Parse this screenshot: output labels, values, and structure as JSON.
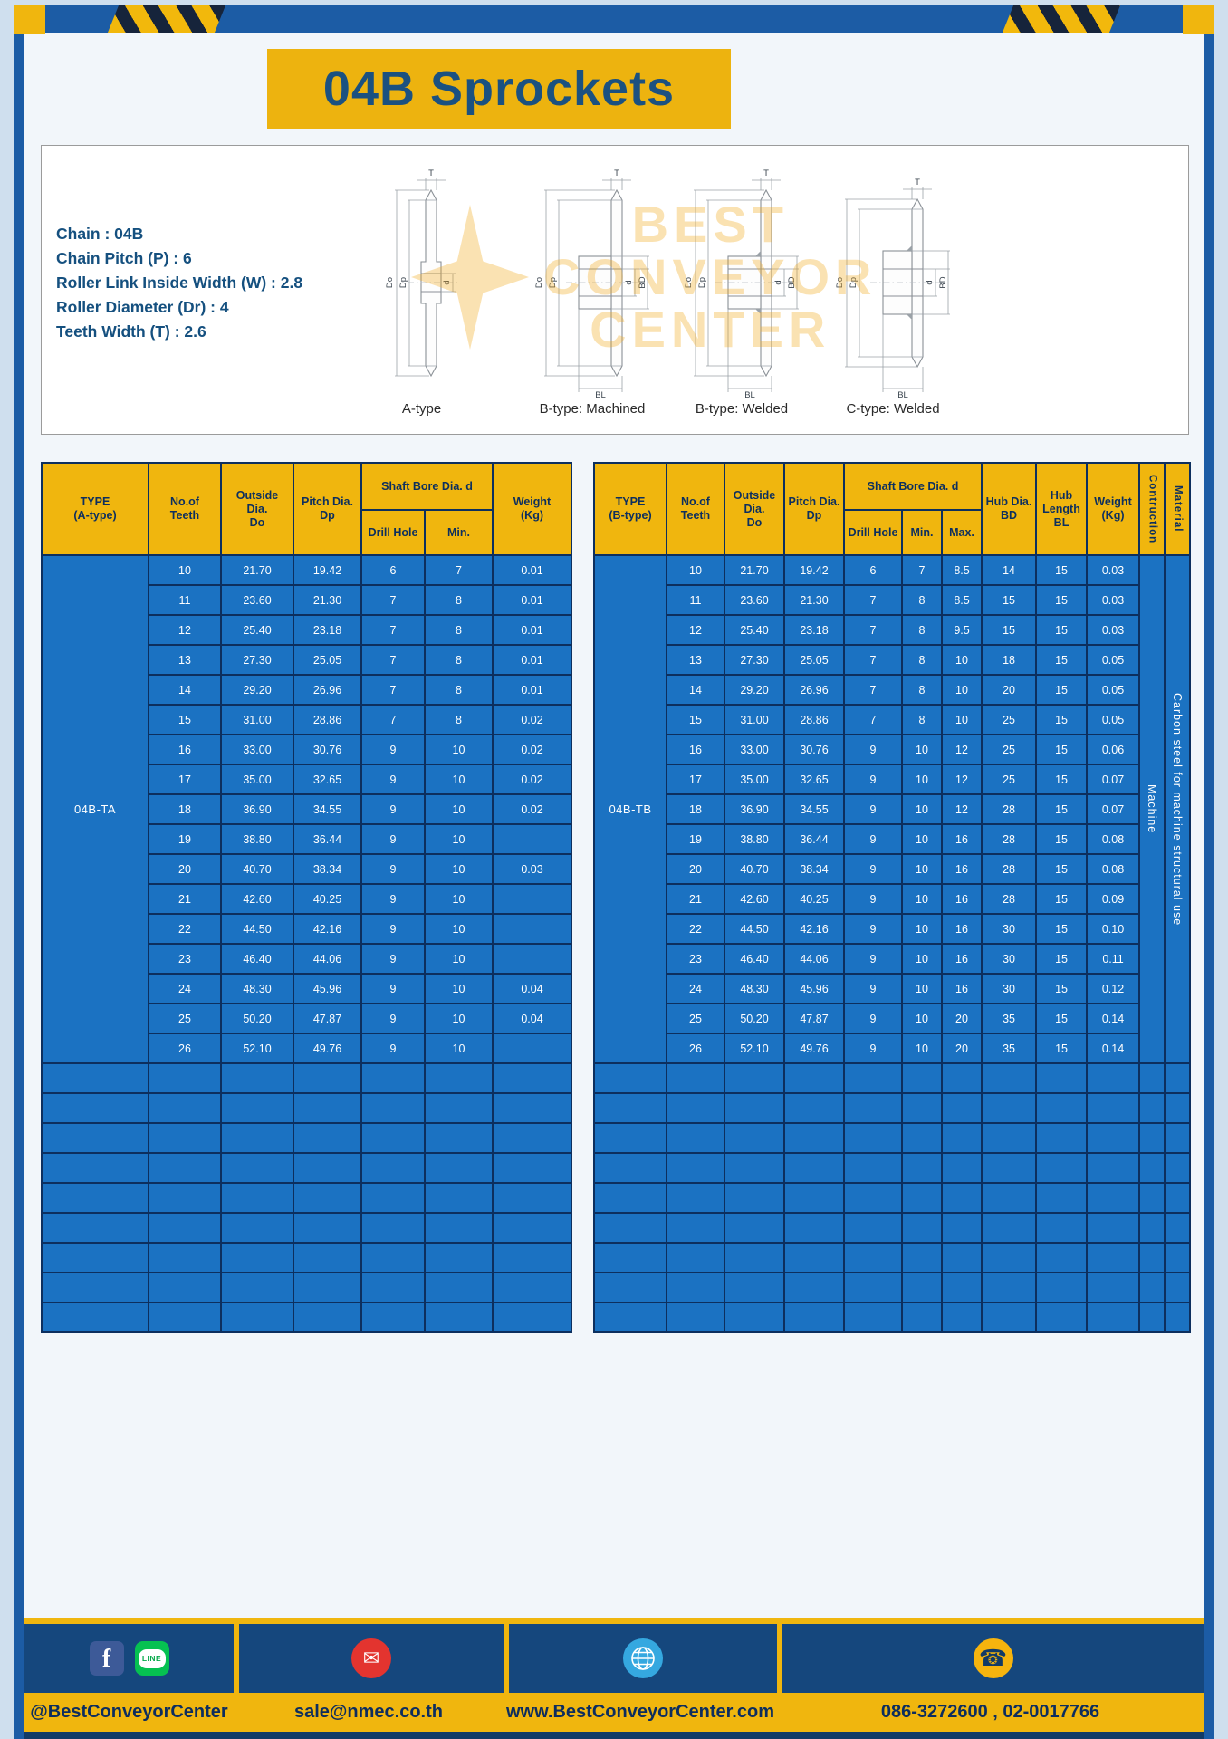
{
  "title": "04B Sprockets",
  "specs": [
    "Chain : 04B",
    "Chain Pitch (P) : 6",
    "Roller Link Inside Width (W) : 2.8",
    "Roller Diameter (Dr) : 4",
    "Teeth Width (T) : 2.6"
  ],
  "watermark": {
    "line1": "BEST",
    "line2": "CONVEYOR",
    "line3": "CENTER"
  },
  "drawings": {
    "captions": [
      "A-type",
      "B-type: Machined",
      "B-type: Welded",
      "C-type: Welded"
    ],
    "dims": {
      "T": "T",
      "Do": "Do",
      "Dp": "Dp",
      "d": "d",
      "BD": "BD",
      "BL": "BL"
    }
  },
  "tableA": {
    "h_type": "TYPE\n(A-type)",
    "h_teeth": "No.of\nTeeth",
    "h_outside": "Outside\nDia.\nDo",
    "h_pitch": "Pitch Dia.\nDp",
    "h_shaft": "Shaft Bore Dia. d",
    "h_drill": "Drill Hole",
    "h_min": "Min.",
    "h_weight": "Weight\n(Kg)",
    "type_label": "04B-TA",
    "total_cols": 7,
    "empty_rows": 9,
    "rows": [
      [
        "10",
        "21.70",
        "19.42",
        "6",
        "7",
        "0.01"
      ],
      [
        "11",
        "23.60",
        "21.30",
        "7",
        "8",
        "0.01"
      ],
      [
        "12",
        "25.40",
        "23.18",
        "7",
        "8",
        "0.01"
      ],
      [
        "13",
        "27.30",
        "25.05",
        "7",
        "8",
        "0.01"
      ],
      [
        "14",
        "29.20",
        "26.96",
        "7",
        "8",
        "0.01"
      ],
      [
        "15",
        "31.00",
        "28.86",
        "7",
        "8",
        "0.02"
      ],
      [
        "16",
        "33.00",
        "30.76",
        "9",
        "10",
        "0.02"
      ],
      [
        "17",
        "35.00",
        "32.65",
        "9",
        "10",
        "0.02"
      ],
      [
        "18",
        "36.90",
        "34.55",
        "9",
        "10",
        "0.02"
      ],
      [
        "19",
        "38.80",
        "36.44",
        "9",
        "10",
        ""
      ],
      [
        "20",
        "40.70",
        "38.34",
        "9",
        "10",
        "0.03"
      ],
      [
        "21",
        "42.60",
        "40.25",
        "9",
        "10",
        ""
      ],
      [
        "22",
        "44.50",
        "42.16",
        "9",
        "10",
        ""
      ],
      [
        "23",
        "46.40",
        "44.06",
        "9",
        "10",
        ""
      ],
      [
        "24",
        "48.30",
        "45.96",
        "9",
        "10",
        "0.04"
      ],
      [
        "25",
        "50.20",
        "47.87",
        "9",
        "10",
        "0.04"
      ],
      [
        "26",
        "52.10",
        "49.76",
        "9",
        "10",
        ""
      ]
    ]
  },
  "tableB": {
    "h_type": "TYPE\n(B-type)",
    "h_teeth": "No.of\nTeeth",
    "h_outside": "Outside\nDia.\nDo",
    "h_pitch": "Pitch Dia.\nDp",
    "h_shaft": "Shaft Bore Dia. d",
    "h_drill": "Drill Hole",
    "h_min": "Min.",
    "h_max": "Max.",
    "h_hubdia": "Hub Dia.\nBD",
    "h_hublen": "Hub\nLength\nBL",
    "h_weight": "Weight\n(Kg)",
    "h_construction": "Contruction",
    "h_material": "Material",
    "type_label": "04B-TB",
    "construction": "Machine",
    "material": "Carbon steel for machine structural use",
    "total_cols": 12,
    "empty_rows": 9,
    "rows": [
      [
        "10",
        "21.70",
        "19.42",
        "6",
        "7",
        "8.5",
        "14",
        "15",
        "0.03"
      ],
      [
        "11",
        "23.60",
        "21.30",
        "7",
        "8",
        "8.5",
        "15",
        "15",
        "0.03"
      ],
      [
        "12",
        "25.40",
        "23.18",
        "7",
        "8",
        "9.5",
        "15",
        "15",
        "0.03"
      ],
      [
        "13",
        "27.30",
        "25.05",
        "7",
        "8",
        "10",
        "18",
        "15",
        "0.05"
      ],
      [
        "14",
        "29.20",
        "26.96",
        "7",
        "8",
        "10",
        "20",
        "15",
        "0.05"
      ],
      [
        "15",
        "31.00",
        "28.86",
        "7",
        "8",
        "10",
        "25",
        "15",
        "0.05"
      ],
      [
        "16",
        "33.00",
        "30.76",
        "9",
        "10",
        "12",
        "25",
        "15",
        "0.06"
      ],
      [
        "17",
        "35.00",
        "32.65",
        "9",
        "10",
        "12",
        "25",
        "15",
        "0.07"
      ],
      [
        "18",
        "36.90",
        "34.55",
        "9",
        "10",
        "12",
        "28",
        "15",
        "0.07"
      ],
      [
        "19",
        "38.80",
        "36.44",
        "9",
        "10",
        "16",
        "28",
        "15",
        "0.08"
      ],
      [
        "20",
        "40.70",
        "38.34",
        "9",
        "10",
        "16",
        "28",
        "15",
        "0.08"
      ],
      [
        "21",
        "42.60",
        "40.25",
        "9",
        "10",
        "16",
        "28",
        "15",
        "0.09"
      ],
      [
        "22",
        "44.50",
        "42.16",
        "9",
        "10",
        "16",
        "30",
        "15",
        "0.10"
      ],
      [
        "23",
        "46.40",
        "44.06",
        "9",
        "10",
        "16",
        "30",
        "15",
        "0.11"
      ],
      [
        "24",
        "48.30",
        "45.96",
        "9",
        "10",
        "16",
        "30",
        "15",
        "0.12"
      ],
      [
        "25",
        "50.20",
        "47.87",
        "9",
        "10",
        "20",
        "35",
        "15",
        "0.14"
      ],
      [
        "26",
        "52.10",
        "49.76",
        "9",
        "10",
        "20",
        "35",
        "15",
        "0.14"
      ]
    ]
  },
  "footer": {
    "fb_label": "f",
    "line_label": "LINE",
    "mail_glyph": "✉",
    "phone_glyph": "☎",
    "sections": [
      {
        "label": "@BestConveyorCenter"
      },
      {
        "label": "sale@nmec.co.th"
      },
      {
        "label": "www.BestConveyorCenter.com"
      },
      {
        "label": "086-3272600 , 02-0017766"
      }
    ]
  },
  "colors": {
    "yellow": "#F0B60E",
    "navy": "#0D2F5E",
    "blue": "#1B72C2",
    "frame": "#1C5CA5",
    "title": "#1B5180",
    "footer-navy": "#15477D"
  }
}
